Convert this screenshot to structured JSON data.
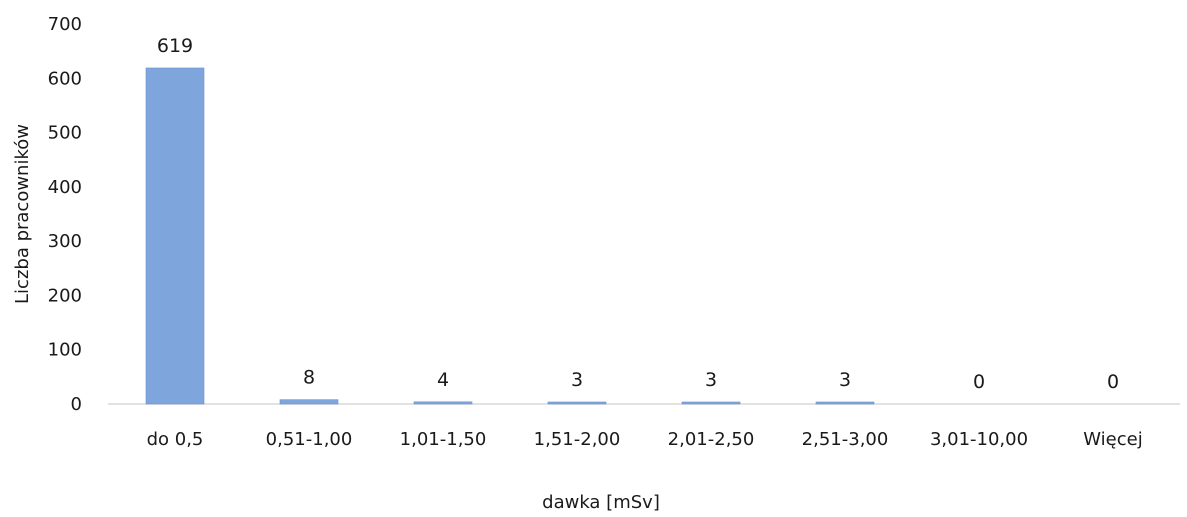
{
  "chart_data": {
    "type": "bar",
    "title": "",
    "xlabel": "dawka [mSv]",
    "ylabel": "Liczba pracowników",
    "categories": [
      "do 0,5",
      "0,51-1,00",
      "1,01-1,50",
      "1,51-2,00",
      "2,01-2,50",
      "2,51-3,00",
      "3,01-10,00",
      "Więcej"
    ],
    "values": [
      619,
      8,
      4,
      3,
      3,
      3,
      0,
      0
    ],
    "data_labels": [
      "619",
      "8",
      "4",
      "3",
      "3",
      "3",
      "0",
      "0"
    ],
    "ylim": [
      0,
      700
    ],
    "yticks": [
      0,
      100,
      200,
      300,
      400,
      500,
      600,
      700
    ],
    "ytick_labels": [
      "0",
      "100",
      "200",
      "300",
      "400",
      "500",
      "600",
      "700"
    ],
    "grid": false,
    "legend": "none",
    "bar_color": "#7ea6dc",
    "bar_edge_color": "#6b93cc",
    "axis_color": "#d0d0d0"
  }
}
